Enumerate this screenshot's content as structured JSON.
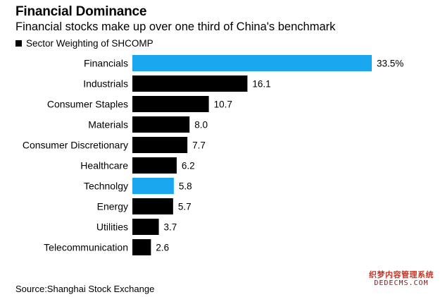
{
  "chart_data": {
    "type": "bar",
    "orientation": "horizontal",
    "title": "Financial Dominance",
    "subtitle": "Financial stocks make up over one third of China's benchmark",
    "legend": [
      "Sector Weighting of SHCOMP"
    ],
    "categories": [
      "Financials",
      "Industrials",
      "Consumer Staples",
      "Materials",
      "Consumer Discretionary",
      "Healthcare",
      "Technolgy",
      "Energy",
      "Utilities",
      "Telecommunication"
    ],
    "values": [
      33.5,
      16.1,
      10.7,
      8.0,
      7.7,
      6.2,
      5.8,
      5.7,
      3.7,
      2.6
    ],
    "value_labels": [
      "33.5%",
      "16.1",
      "10.7",
      "8.0",
      "7.7",
      "6.2",
      "5.8",
      "5.7",
      "3.7",
      "2.6"
    ],
    "highlighted": [
      true,
      false,
      false,
      false,
      false,
      false,
      true,
      false,
      false,
      false
    ],
    "xlim": [
      0,
      33.5
    ],
    "source": "Source:Shanghai Stock Exchange"
  },
  "colors": {
    "bar": "#000000",
    "highlight": "#1aa7f0",
    "text": "#000000"
  },
  "watermark": {
    "line1": "织梦内容管理系统",
    "line2": "DEDECMS.COM"
  }
}
